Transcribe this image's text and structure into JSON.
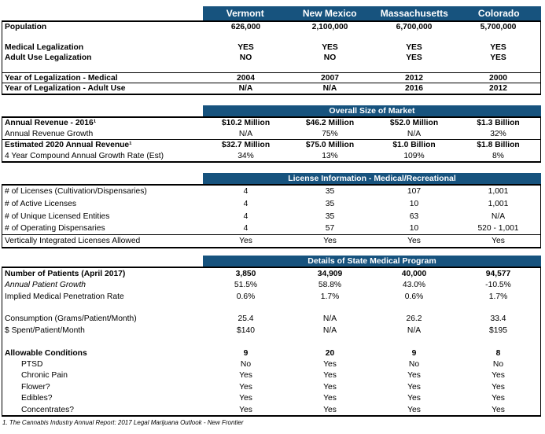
{
  "columns": [
    "Vermont",
    "New Mexico",
    "Massachusetts",
    "Colorado"
  ],
  "colors": {
    "band_blue": "#17537E",
    "band_text": "#ffffff",
    "border": "#000000"
  },
  "sections": [
    {
      "id": "demographics",
      "band": null,
      "rows": [
        {
          "label": "Population",
          "values": [
            "626,000",
            "2,100,000",
            "6,700,000",
            "5,700,000"
          ],
          "bold": true
        },
        {
          "spacer": true
        },
        {
          "label": "Medical Legalization",
          "values": [
            "YES",
            "YES",
            "YES",
            "YES"
          ],
          "bold": true
        },
        {
          "label": "Adult Use Legalization",
          "values": [
            "NO",
            "NO",
            "YES",
            "YES"
          ],
          "bold": true
        },
        {
          "spacer": true,
          "border_bottom": true
        },
        {
          "label": "Year of Legalization - Medical",
          "values": [
            "2004",
            "2007",
            "2012",
            "2000"
          ],
          "bold": true,
          "border_bottom": true
        },
        {
          "label": "Year of Legalization - Adult Use",
          "values": [
            "N/A",
            "N/A",
            "2016",
            "2012"
          ],
          "bold": true
        }
      ]
    },
    {
      "id": "overall-size-of-market",
      "band": "Overall Size of Market",
      "rows": [
        {
          "label": "Annual Revenue - 2016¹",
          "values": [
            "$10.2 Million",
            "$46.2 Million",
            "$52.0 Million",
            "$1.3 Billion"
          ],
          "bold": true
        },
        {
          "label": "Annual Revenue Growth",
          "values": [
            "N/A",
            "75%",
            "N/A",
            "32%"
          ],
          "border_bottom": true
        },
        {
          "label": "Estimated 2020 Annual Revenue¹",
          "values": [
            "$32.7 Million",
            "$75.0 Million",
            "$1.0 Billion",
            "$1.8 Billion"
          ],
          "bold": true
        },
        {
          "label": "4 Year Compound Annual Growth Rate (Est)",
          "values": [
            "34%",
            "13%",
            "109%",
            "8%"
          ]
        }
      ]
    },
    {
      "id": "license-information",
      "band": "License Information - Medical/Recreational",
      "rows": [
        {
          "label": "# of Licenses (Cultivation/Dispensaries)",
          "values": [
            "4",
            "35",
            "107",
            "1,001"
          ]
        },
        {
          "label": "# of Active Licenses",
          "values": [
            "4",
            "35",
            "10",
            "1,001"
          ]
        },
        {
          "label": "# of Unique Licensed Entities",
          "values": [
            "4",
            "35",
            "63",
            "N/A"
          ]
        },
        {
          "label": "# of Operating Dispensaries",
          "values": [
            "4",
            "57",
            "10",
            "520 - 1,001"
          ],
          "border_bottom": true
        },
        {
          "label": "Vertically Integrated Licenses Allowed",
          "values": [
            "Yes",
            "Yes",
            "Yes",
            "Yes"
          ]
        }
      ]
    },
    {
      "id": "state-medical-program",
      "band": "Details of State Medical Program",
      "rows": [
        {
          "label": "Number of Patients (April 2017)",
          "values": [
            "3,850",
            "34,909",
            "40,000",
            "94,577"
          ],
          "bold": true
        },
        {
          "label": "Annual Patient Growth",
          "values": [
            "51.5%",
            "58.8%",
            "43.0%",
            "-10.5%"
          ],
          "italic_label": true
        },
        {
          "label": "Implied Medical Penetration Rate",
          "values": [
            "0.6%",
            "1.7%",
            "0.6%",
            "1.7%"
          ]
        },
        {
          "spacer": true
        },
        {
          "label": "Consumption (Grams/Patient/Month)",
          "values": [
            "25.4",
            "N/A",
            "26.2",
            "33.4"
          ]
        },
        {
          "label": "$ Spent/Patient/Month",
          "values": [
            "$140",
            "N/A",
            "N/A",
            "$195"
          ]
        },
        {
          "spacer": true
        },
        {
          "label": "Allowable Conditions",
          "values": [
            "9",
            "20",
            "9",
            "8"
          ],
          "bold": true
        },
        {
          "label": "PTSD",
          "values": [
            "No",
            "Yes",
            "No",
            "No"
          ],
          "indent": true
        },
        {
          "label": "Chronic Pain",
          "values": [
            "Yes",
            "Yes",
            "Yes",
            "Yes"
          ],
          "indent": true
        },
        {
          "label": "Flower?",
          "values": [
            "Yes",
            "Yes",
            "Yes",
            "Yes"
          ],
          "indent": true
        },
        {
          "label": "Edibles?",
          "values": [
            "Yes",
            "Yes",
            "Yes",
            "Yes"
          ],
          "indent": true
        },
        {
          "label": "Concentrates?",
          "values": [
            "Yes",
            "Yes",
            "Yes",
            "Yes"
          ],
          "indent": true
        }
      ]
    }
  ],
  "footnote": "1. The Cannabis Industry Annual Report: 2017 Legal Marijuana Outlook  - New Frontier"
}
